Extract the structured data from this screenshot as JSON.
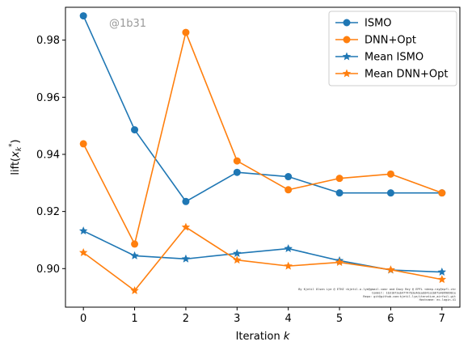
{
  "watermark": "@1b31",
  "footer_note": [
    "By Kjetil Olsen Lye @ ETHZ <kjetil.o.lye@gmail.com> and Davy Rey @ EPFL <deep.ray@epfl.ch>",
    "Commit: 1b31073eb47f47b3e4deadd41a1b6fa4099098ce",
    "Repo: git@github.com:kjetil-lye/iterative_airfoil.git",
    "Hostname: ec.login.41"
  ],
  "colors": {
    "ismo": "#1f77b4",
    "dnn_opt": "#ff7f0e"
  },
  "chart_data": {
    "type": "line",
    "xlabel": "Iteration k",
    "ylabel": "lift(x_k*)",
    "x": [
      0,
      1,
      2,
      3,
      4,
      5,
      6,
      7
    ],
    "xlim": [
      -0.35,
      7.35
    ],
    "ylim": [
      0.8865,
      0.9915
    ],
    "xticks": [
      "0",
      "1",
      "2",
      "3",
      "4",
      "5",
      "6",
      "7"
    ],
    "yticks": [
      0.9,
      0.92,
      0.94,
      0.96,
      0.98
    ],
    "ytick_labels": [
      "0.90",
      "0.92",
      "0.94",
      "0.96",
      "0.98"
    ],
    "legend_position": "top-right",
    "series": [
      {
        "name": "ISMO",
        "color": "#1f77b4",
        "marker": "circle",
        "values": [
          0.9885,
          0.9486,
          0.9235,
          0.9337,
          0.9322,
          0.9265,
          0.9265,
          0.9265
        ]
      },
      {
        "name": "DNN+Opt",
        "color": "#ff7f0e",
        "marker": "circle",
        "values": [
          0.9437,
          0.9086,
          0.9827,
          0.9377,
          0.9276,
          0.9316,
          0.9331,
          0.9265
        ]
      },
      {
        "name": "Mean ISMO",
        "color": "#1f77b4",
        "marker": "star",
        "values": [
          0.9132,
          0.9045,
          0.9034,
          0.9053,
          0.907,
          0.9028,
          0.8995,
          0.8988
        ]
      },
      {
        "name": "Mean DNN+Opt",
        "color": "#ff7f0e",
        "marker": "star",
        "values": [
          0.9056,
          0.8923,
          0.9145,
          0.903,
          0.9009,
          0.9022,
          0.8996,
          0.8962
        ]
      }
    ]
  }
}
